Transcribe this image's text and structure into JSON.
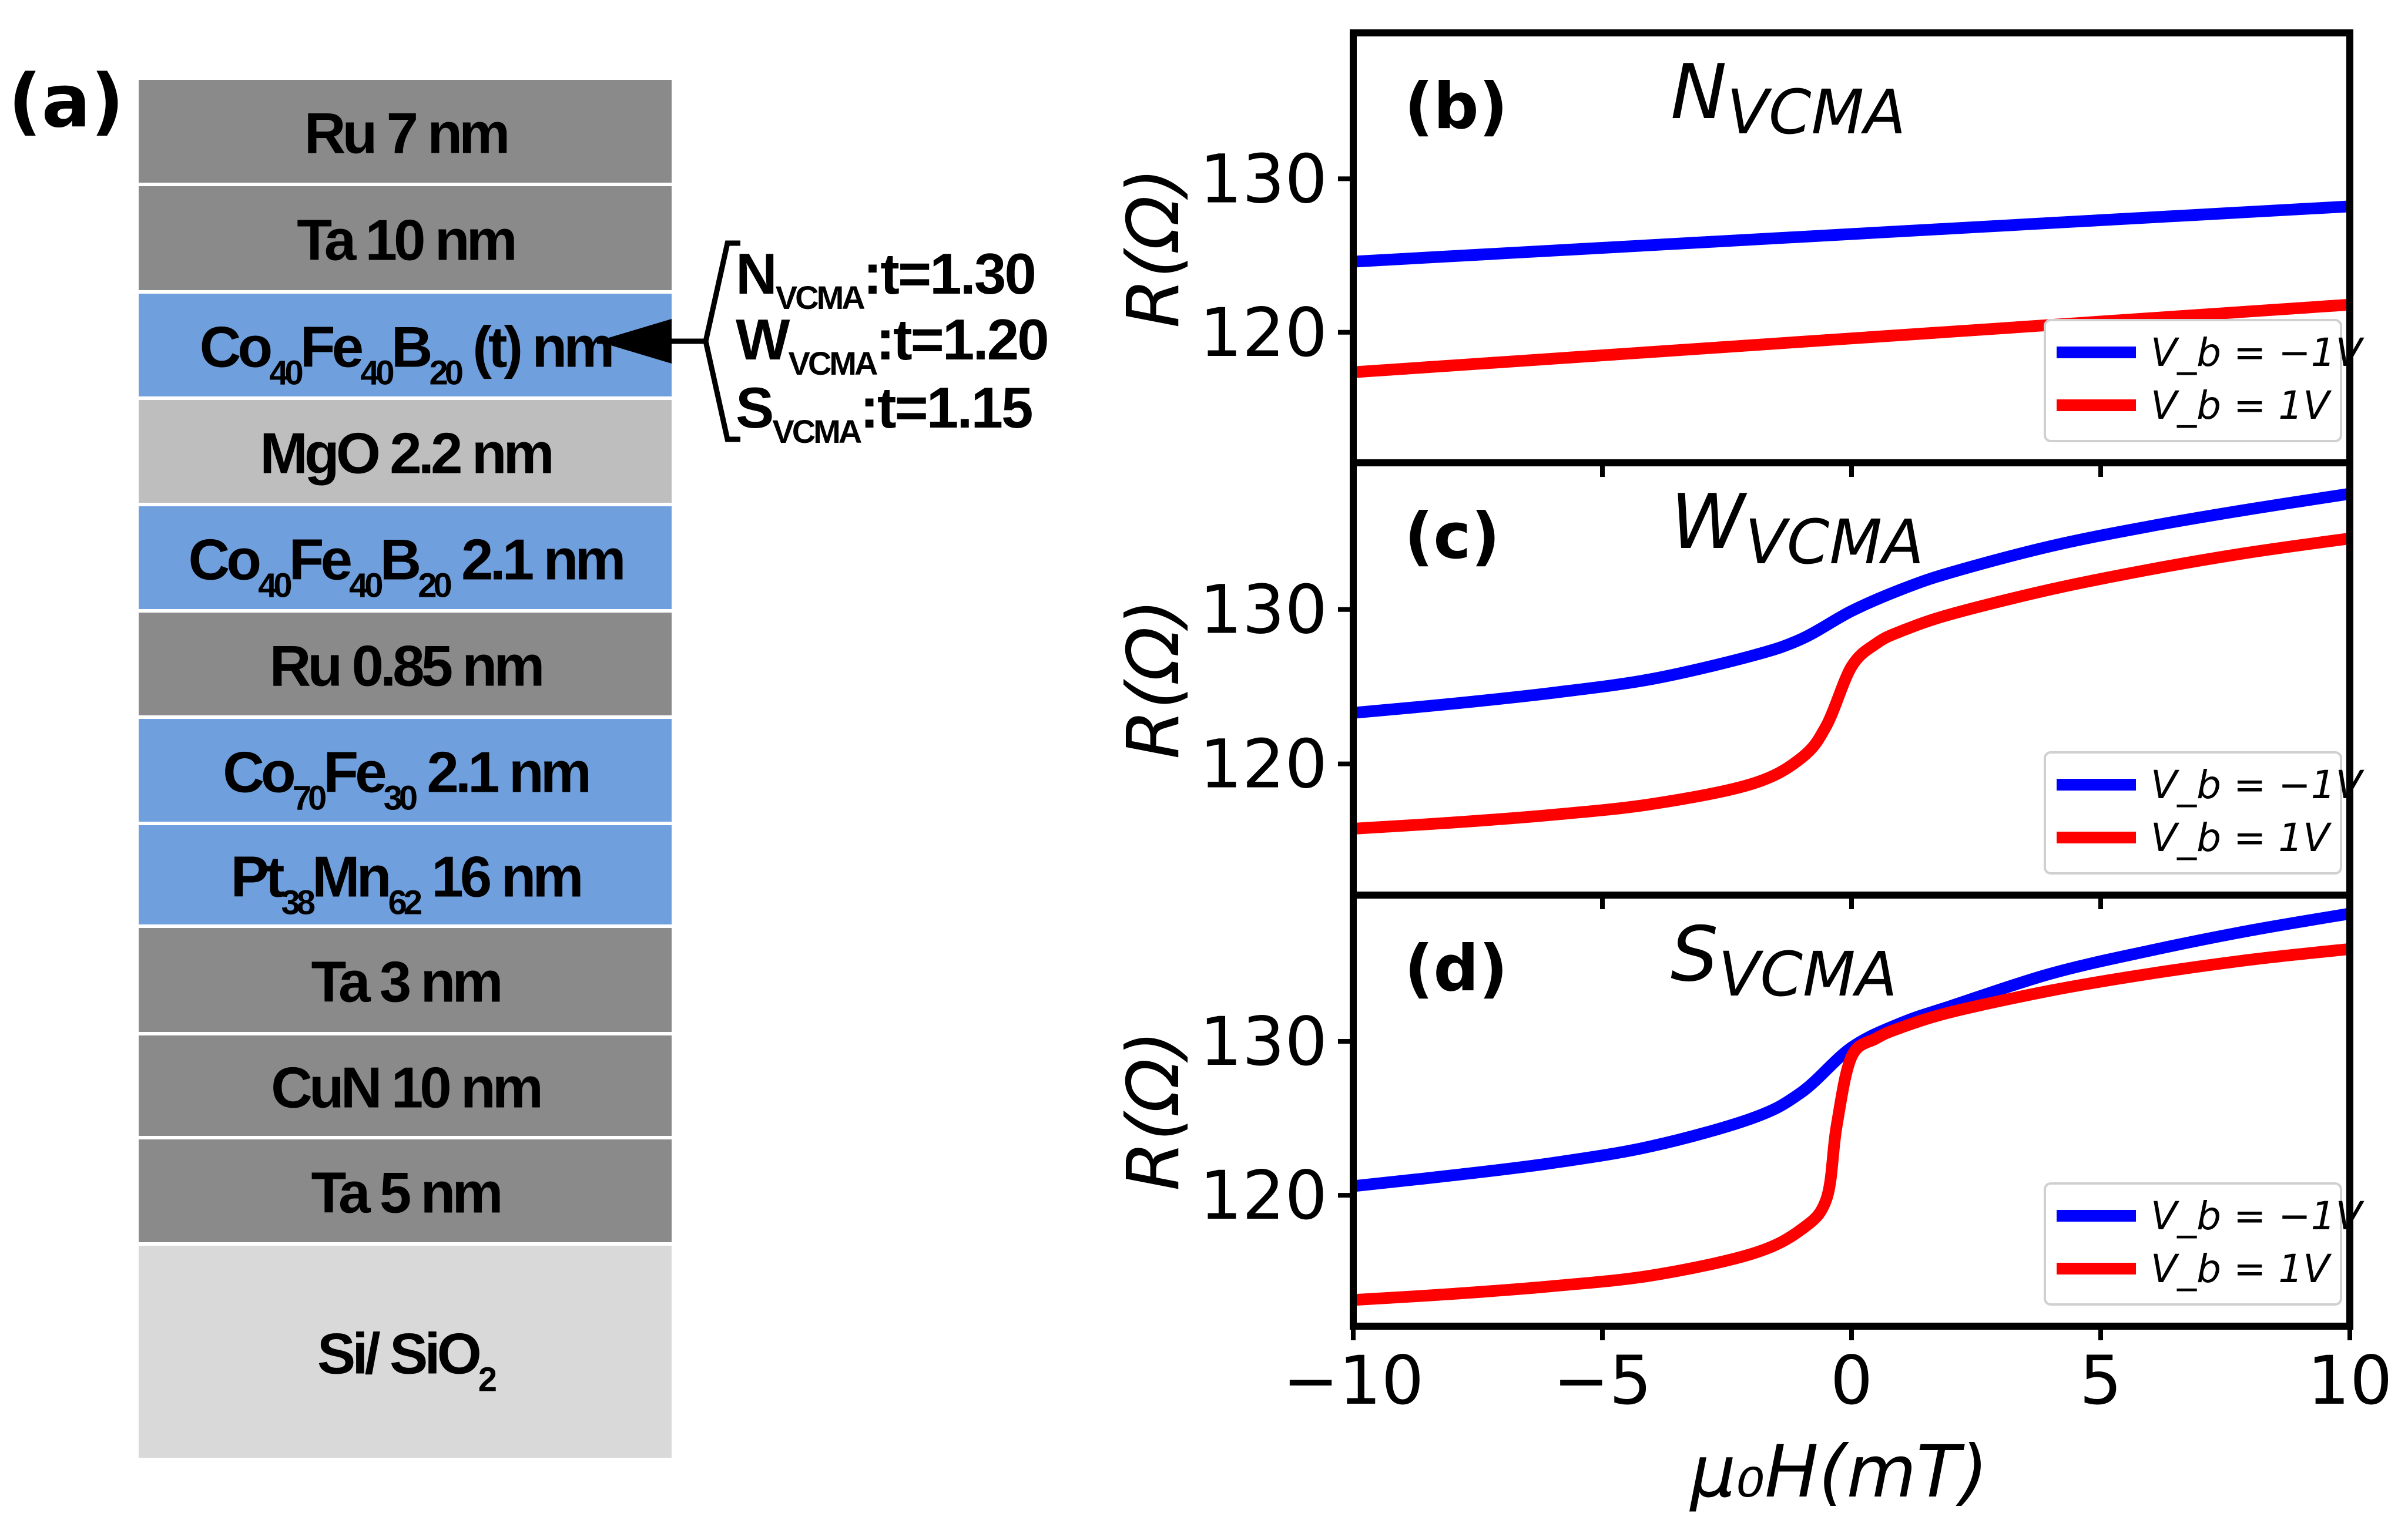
{
  "panel_a": {
    "label": "(a)",
    "layers": [
      {
        "parts": [
          {
            "t": "Ru 7 nm"
          }
        ],
        "color": "#8a8a8a"
      },
      {
        "parts": [
          {
            "t": "Ta 10 nm"
          }
        ],
        "color": "#8a8a8a"
      },
      {
        "parts": [
          {
            "t": "Co"
          },
          {
            "t": "40",
            "sub": true
          },
          {
            "t": "Fe"
          },
          {
            "t": "40",
            "sub": true
          },
          {
            "t": "B"
          },
          {
            "t": "20",
            "sub": true
          },
          {
            "t": " (t) nm"
          }
        ],
        "color": "#6f9fdd"
      },
      {
        "parts": [
          {
            "t": "MgO 2.2 nm"
          }
        ],
        "color": "#bebebe"
      },
      {
        "parts": [
          {
            "t": "Co"
          },
          {
            "t": "40",
            "sub": true
          },
          {
            "t": "Fe"
          },
          {
            "t": "40",
            "sub": true
          },
          {
            "t": "B"
          },
          {
            "t": "20",
            "sub": true
          },
          {
            "t": " 2.1 nm"
          }
        ],
        "color": "#6f9fdd"
      },
      {
        "parts": [
          {
            "t": "Ru 0.85 nm"
          }
        ],
        "color": "#8a8a8a"
      },
      {
        "parts": [
          {
            "t": "Co"
          },
          {
            "t": "70",
            "sub": true
          },
          {
            "t": "Fe"
          },
          {
            "t": "30",
            "sub": true
          },
          {
            "t": " 2.1 nm"
          }
        ],
        "color": "#6f9fdd"
      },
      {
        "parts": [
          {
            "t": "Pt"
          },
          {
            "t": "38",
            "sub": true
          },
          {
            "t": "Mn"
          },
          {
            "t": "62",
            "sub": true
          },
          {
            "t": " 16 nm"
          }
        ],
        "color": "#6f9fdd"
      },
      {
        "parts": [
          {
            "t": "Ta 3 nm"
          }
        ],
        "color": "#8a8a8a"
      },
      {
        "parts": [
          {
            "t": "CuN 10 nm"
          }
        ],
        "color": "#8a8a8a"
      },
      {
        "parts": [
          {
            "t": "Ta 5 nm"
          }
        ],
        "color": "#8a8a8a"
      },
      {
        "parts": [
          {
            "t": "Si/ SiO"
          },
          {
            "t": "2",
            "sub": true
          }
        ],
        "color": "#d9d9d9"
      }
    ],
    "annotations": [
      {
        "main": "N",
        "sub": "VCMA",
        "value": ":t=1.30"
      },
      {
        "main": "W",
        "sub": "VCMA",
        "value": ":t=1.20"
      },
      {
        "main": "S",
        "sub": "VCMA",
        "value": ":t=1.15"
      }
    ]
  },
  "colors": {
    "series_minus": "#0000ff",
    "series_plus": "#ff0000"
  },
  "axis": {
    "ylabel": "R(Ω)",
    "xlabel": "μ₀H(mT)",
    "xticks": [
      "−10",
      "−5",
      "0",
      "5",
      "10"
    ],
    "yticks": [
      "120",
      "130"
    ]
  },
  "legend": {
    "minus": "V_b = −1V",
    "plus": "V_b = 1V"
  },
  "chart_data": [
    {
      "type": "line",
      "panel": "(b)",
      "title_main": "N",
      "title_sub": "VCMA",
      "xlim": [
        -10,
        10
      ],
      "ylim": [
        111.5,
        139.5
      ],
      "yticks": [
        120,
        130
      ],
      "legend_position": "lower-right",
      "series": [
        {
          "name": "V_b = −1V",
          "color": "#0000ff",
          "x": [
            -10,
            -5,
            0,
            5,
            10
          ],
          "y": [
            124.6,
            125.5,
            126.4,
            127.3,
            128.2
          ]
        },
        {
          "name": "V_b = 1V",
          "color": "#ff0000",
          "x": [
            -10,
            -5,
            0,
            5,
            10
          ],
          "y": [
            117.4,
            118.5,
            119.6,
            120.7,
            121.8
          ]
        }
      ]
    },
    {
      "type": "line",
      "panel": "(c)",
      "title_main": "W",
      "title_sub": "VCMA",
      "xlim": [
        -10,
        10
      ],
      "ylim": [
        111.5,
        139.5
      ],
      "yticks": [
        120,
        130
      ],
      "legend_position": "lower-right",
      "series": [
        {
          "name": "V_b = −1V",
          "color": "#0000ff",
          "x": [
            -10,
            -8,
            -6,
            -4,
            -2,
            -1,
            0,
            1,
            2,
            4,
            6,
            8,
            10
          ],
          "y": [
            123.3,
            123.9,
            124.6,
            125.5,
            127.0,
            128.1,
            129.9,
            131.3,
            132.4,
            134.1,
            135.4,
            136.5,
            137.5
          ]
        },
        {
          "name": "V_b = 1V",
          "color": "#ff0000",
          "x": [
            -10,
            -8,
            -6,
            -4,
            -2,
            -1,
            -0.5,
            0,
            0.5,
            1,
            2,
            4,
            6,
            8,
            10
          ],
          "y": [
            115.8,
            116.2,
            116.7,
            117.4,
            118.7,
            120.4,
            122.5,
            126.3,
            127.8,
            128.6,
            129.7,
            131.3,
            132.6,
            133.7,
            134.6
          ]
        }
      ]
    },
    {
      "type": "line",
      "panel": "(d)",
      "title_main": "S",
      "title_sub": "VCMA",
      "xlim": [
        -10,
        10
      ],
      "ylim": [
        111.5,
        139.5
      ],
      "yticks": [
        120,
        130
      ],
      "legend_position": "lower-right",
      "series": [
        {
          "name": "V_b = −1V",
          "color": "#0000ff",
          "x": [
            -10,
            -8,
            -6,
            -4,
            -2,
            -1,
            0,
            1,
            2,
            4,
            6,
            8,
            10
          ],
          "y": [
            120.6,
            121.3,
            122.1,
            123.2,
            125.0,
            126.7,
            129.6,
            131.2,
            132.3,
            134.4,
            135.9,
            137.2,
            138.3
          ]
        },
        {
          "name": "V_b = 1V",
          "color": "#ff0000",
          "x": [
            -10,
            -8,
            -6,
            -4,
            -2,
            -1,
            -0.5,
            -0.3,
            0,
            0.5,
            1,
            2,
            4,
            6,
            8,
            10
          ],
          "y": [
            113.2,
            113.6,
            114.1,
            114.8,
            116.2,
            117.8,
            119.8,
            124.5,
            129.0,
            130.2,
            130.9,
            131.9,
            133.3,
            134.4,
            135.3,
            136.0
          ]
        }
      ]
    }
  ]
}
